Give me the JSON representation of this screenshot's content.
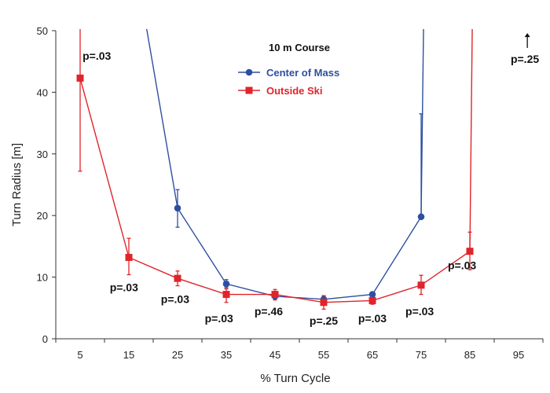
{
  "chart_data": {
    "type": "line",
    "title": "10 m Course",
    "xlabel": "% Turn Cycle",
    "ylabel": "Turn Radius [m]",
    "xlim": [
      0,
      100
    ],
    "ylim": [
      0,
      50
    ],
    "x_ticks": [
      5,
      15,
      25,
      35,
      45,
      55,
      65,
      75,
      85,
      95
    ],
    "y_ticks": [
      0,
      10,
      20,
      30,
      40,
      50
    ],
    "legend_position": "top-center",
    "series": [
      {
        "name": "Center of Mass",
        "color": "#2e4fa0",
        "marker": "circle",
        "points": [
          {
            "x": 25,
            "y": 21.2,
            "err_low": 18.1,
            "err_high": 24.2
          },
          {
            "x": 35,
            "y": 8.9,
            "err_low": 8.3,
            "err_high": 9.6
          },
          {
            "x": 45,
            "y": 6.9,
            "err_low": 6.5,
            "err_high": 7.3
          },
          {
            "x": 55,
            "y": 6.4,
            "err_low": 5.9,
            "err_high": 6.9
          },
          {
            "x": 65,
            "y": 7.2,
            "err_low": 6.7,
            "err_high": 7.6
          },
          {
            "x": 75,
            "y": 19.8,
            "err_low": 19.8,
            "err_high": 36.5
          }
        ],
        "offscale_before": {
          "x": 18.5,
          "y": 51
        },
        "offscale_after": {
          "x": 75.5,
          "y": 51
        }
      },
      {
        "name": "Outside Ski",
        "color": "#e0242b",
        "marker": "square",
        "points": [
          {
            "x": 5,
            "y": 42.3,
            "err_low": 27.2,
            "err_high": 51
          },
          {
            "x": 15,
            "y": 13.2,
            "err_low": 10.4,
            "err_high": 16.3
          },
          {
            "x": 25,
            "y": 9.8,
            "err_low": 8.6,
            "err_high": 11.0
          },
          {
            "x": 35,
            "y": 7.2,
            "err_low": 5.9,
            "err_high": 8.1
          },
          {
            "x": 45,
            "y": 7.2,
            "err_low": 6.3,
            "err_high": 8.0
          },
          {
            "x": 55,
            "y": 5.9,
            "err_low": 4.8,
            "err_high": 7.0
          },
          {
            "x": 65,
            "y": 6.2,
            "err_low": 5.6,
            "err_high": 6.7
          },
          {
            "x": 75,
            "y": 8.7,
            "err_low": 7.2,
            "err_high": 10.3
          },
          {
            "x": 85,
            "y": 14.2,
            "err_low": 11.2,
            "err_high": 17.3
          }
        ],
        "offscale_after": {
          "x": 85.5,
          "y": 51
        }
      }
    ],
    "annotations": [
      {
        "text": "p=.03",
        "x": 5.5,
        "y": 45.3,
        "anchor": "start"
      },
      {
        "text": "p=.03",
        "x": 14,
        "y": 7.7,
        "anchor": "middle"
      },
      {
        "text": "p=.03",
        "x": 24.5,
        "y": 5.8,
        "anchor": "middle"
      },
      {
        "text": "p=.03",
        "x": 33.5,
        "y": 2.7,
        "anchor": "middle"
      },
      {
        "text": "p=.46",
        "x": 43.7,
        "y": 3.8,
        "anchor": "middle"
      },
      {
        "text": "p=.25",
        "x": 55,
        "y": 2.3,
        "anchor": "middle"
      },
      {
        "text": "p=.03",
        "x": 65,
        "y": 2.7,
        "anchor": "middle"
      },
      {
        "text": "p=.03",
        "x": 74.7,
        "y": 3.8,
        "anchor": "middle"
      },
      {
        "text": "p=.03",
        "x": 83.4,
        "y": 11.3,
        "anchor": "middle"
      },
      {
        "text": "p=.25",
        "x": 96.3,
        "y": 44.8,
        "anchor": "middle"
      }
    ],
    "arrow": {
      "x": 96.8,
      "y_from": 47.2,
      "y_to": 49.6
    }
  }
}
